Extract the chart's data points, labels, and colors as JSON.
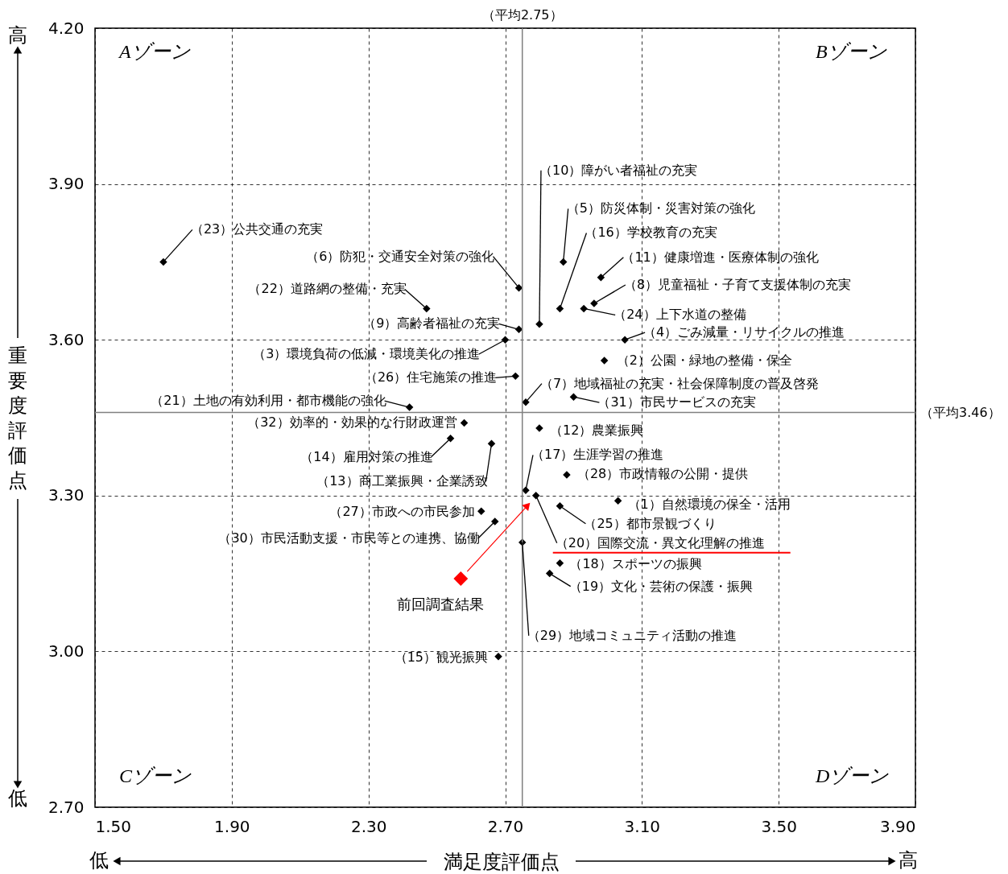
{
  "chart_data": {
    "type": "scatter",
    "xlabel": "満足度評価点",
    "ylabel": "重要度評価点",
    "xlim": [
      1.5,
      3.9
    ],
    "ylim": [
      2.7,
      4.2
    ],
    "xticks": [
      {
        "value": 1.5,
        "label": "1.50"
      },
      {
        "value": 1.9,
        "label": "1.90"
      },
      {
        "value": 2.3,
        "label": "2.30"
      },
      {
        "value": 2.7,
        "label": "2.70"
      },
      {
        "value": 3.1,
        "label": "3.10"
      },
      {
        "value": 3.5,
        "label": "3.50"
      },
      {
        "value": 3.9,
        "label": "3.90"
      }
    ],
    "yticks": [
      {
        "value": 2.7,
        "label": "2.70"
      },
      {
        "value": 3.0,
        "label": "3.00"
      },
      {
        "value": 3.3,
        "label": "3.30"
      },
      {
        "value": 3.6,
        "label": "3.60"
      },
      {
        "value": 3.9,
        "label": "3.90"
      },
      {
        "value": 4.2,
        "label": "4.20"
      }
    ],
    "grid": true,
    "marker": "diamond",
    "series": [
      {
        "color": "#000000",
        "x": [
          3.03,
          2.99,
          2.7,
          3.05,
          2.87,
          2.74,
          2.76,
          2.96,
          2.74,
          2.8,
          2.98,
          2.8,
          2.66,
          2.54,
          2.68,
          2.86,
          2.76,
          2.86,
          2.83,
          2.79,
          2.42,
          2.47,
          1.7,
          2.93,
          2.86,
          2.73,
          2.63,
          2.88,
          2.75,
          2.67,
          2.9,
          2.58
        ],
        "values": [
          3.29,
          3.56,
          3.6,
          3.6,
          3.75,
          3.7,
          3.48,
          3.67,
          3.62,
          3.63,
          3.72,
          3.43,
          3.4,
          3.41,
          2.99,
          3.66,
          3.31,
          3.17,
          3.15,
          3.3,
          3.47,
          3.66,
          3.75,
          3.66,
          3.28,
          3.53,
          3.27,
          3.34,
          3.21,
          3.25,
          3.49,
          3.44
        ]
      },
      {
        "name": "前回調査結果",
        "color": "#ff0000",
        "x": [
          2.57
        ],
        "values": [
          3.14
        ]
      }
    ],
    "ref_lines": [
      {
        "axis": "x",
        "value": 2.75,
        "label": "（平均2.75）",
        "color": "#808080"
      },
      {
        "axis": "y",
        "value": 3.46,
        "label": "（平均3.46）",
        "color": "#808080"
      }
    ],
    "annotations": [
      {
        "text": "（1）自然環境の保全・活用",
        "x": 3.03,
        "y": 3.29
      },
      {
        "text": "（2）公園・緑地の整備・保全",
        "x": 2.99,
        "y": 3.56
      },
      {
        "text": "（3）環境負荷の低減・環境美化の推進",
        "x": 2.7,
        "y": 3.6
      },
      {
        "text": "（4）ごみ減量・リサイクルの推進",
        "x": 3.05,
        "y": 3.6
      },
      {
        "text": "（5）防災体制・災害対策の強化",
        "x": 2.87,
        "y": 3.75
      },
      {
        "text": "（6）防犯・交通安全対策の強化",
        "x": 2.74,
        "y": 3.7
      },
      {
        "text": "（7）地域福祉の充実・社会保障制度の普及啓発",
        "x": 2.76,
        "y": 3.48
      },
      {
        "text": "（8）児童福祉・子育て支援体制の充実",
        "x": 2.96,
        "y": 3.67
      },
      {
        "text": "（9）高齢者福祉の充実",
        "x": 2.74,
        "y": 3.62
      },
      {
        "text": "（10）障がい者福祉の充実",
        "x": 2.8,
        "y": 3.63
      },
      {
        "text": "（11）健康増進・医療体制の強化",
        "x": 2.98,
        "y": 3.72
      },
      {
        "text": "（12）農業振興",
        "x": 2.8,
        "y": 3.43
      },
      {
        "text": "（13）商工業振興・企業誘致",
        "x": 2.66,
        "y": 3.4
      },
      {
        "text": "（14）雇用対策の推進",
        "x": 2.54,
        "y": 3.41
      },
      {
        "text": "（15）観光振興",
        "x": 2.68,
        "y": 2.99
      },
      {
        "text": "（16）学校教育の充実",
        "x": 2.86,
        "y": 3.66
      },
      {
        "text": "（17）生涯学習の推進",
        "x": 2.76,
        "y": 3.31
      },
      {
        "text": "（18）スポーツの振興",
        "x": 2.86,
        "y": 3.17
      },
      {
        "text": "（19）文化・芸術の保護・振興",
        "x": 2.83,
        "y": 3.15
      },
      {
        "text": "（20）国際交流・異文化理解の推進",
        "x": 2.79,
        "y": 3.3
      },
      {
        "text": "（21）土地の有効利用・都市機能の強化",
        "x": 2.42,
        "y": 3.47
      },
      {
        "text": "（22）道路網の整備・充実",
        "x": 2.47,
        "y": 3.66
      },
      {
        "text": "（23）公共交通の充実",
        "x": 1.7,
        "y": 3.75
      },
      {
        "text": "（24）上下水道の整備",
        "x": 2.93,
        "y": 3.66
      },
      {
        "text": "（25）都市景観づくり",
        "x": 2.86,
        "y": 3.28
      },
      {
        "text": "（26）住宅施策の推進",
        "x": 2.73,
        "y": 3.53
      },
      {
        "text": "（27）市政への市民参加",
        "x": 2.63,
        "y": 3.27
      },
      {
        "text": "（28）市政情報の公開・提供",
        "x": 2.88,
        "y": 3.34
      },
      {
        "text": "（29）地域コミュニティ活動の推進",
        "x": 2.75,
        "y": 3.21
      },
      {
        "text": "（30）市民活動支援・市民等との連携、協働",
        "x": 2.67,
        "y": 3.25
      },
      {
        "text": "（31）市民サービスの充実",
        "x": 2.9,
        "y": 3.49
      },
      {
        "text": "（32）効率的・効果的な行財政運営",
        "x": 2.58,
        "y": 3.44
      },
      "Aゾーン",
      "Bゾーン",
      "Cゾーン",
      "Dゾーン",
      "高",
      "低",
      "低",
      "高"
    ]
  }
}
